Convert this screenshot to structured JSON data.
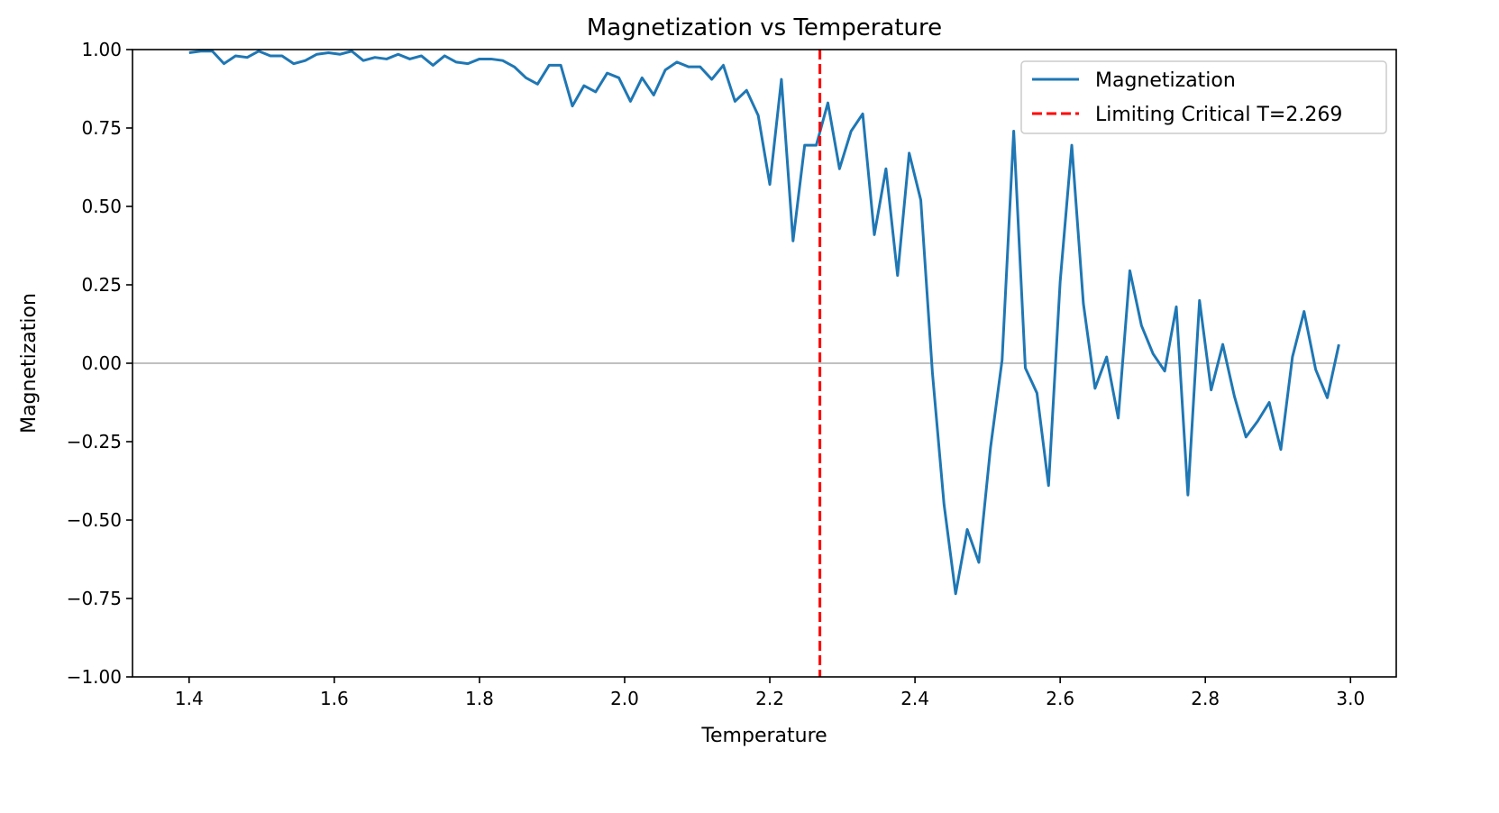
{
  "chart_data": {
    "type": "line",
    "title": "Magnetization vs Temperature",
    "xlabel": "Temperature",
    "ylabel": "Magnetization",
    "xlim": [
      1.322,
      3.063
    ],
    "ylim": [
      -1.0,
      1.0
    ],
    "xticks": [
      1.4,
      1.6,
      1.8,
      2.0,
      2.2,
      2.4,
      2.6,
      2.8,
      3.0
    ],
    "xtick_labels": [
      "1.4",
      "1.6",
      "1.8",
      "2.0",
      "2.2",
      "2.4",
      "2.6",
      "2.8",
      "3.0"
    ],
    "yticks": [
      -1.0,
      -0.75,
      -0.5,
      -0.25,
      0.0,
      0.25,
      0.5,
      0.75,
      1.0
    ],
    "ytick_labels": [
      "−1.00",
      "−0.75",
      "−0.50",
      "−0.25",
      "0.00",
      "0.25",
      "0.50",
      "0.75",
      "1.00"
    ],
    "grid": false,
    "legend_position": "top-right",
    "hline": {
      "y": 0,
      "color": "#808080"
    },
    "vline": {
      "x": 2.269,
      "label": "Limiting Critical T=2.269",
      "color": "#ff0000",
      "style": "dashed"
    },
    "series": [
      {
        "name": "Magnetization",
        "color": "#1f77b4",
        "x_start": 1.4,
        "x_step": 0.016,
        "values": [
          0.99,
          0.995,
          0.995,
          0.955,
          0.98,
          0.975,
          0.995,
          0.98,
          0.98,
          0.955,
          0.965,
          0.985,
          0.99,
          0.985,
          0.995,
          0.965,
          0.975,
          0.97,
          0.985,
          0.97,
          0.98,
          0.95,
          0.98,
          0.96,
          0.955,
          0.97,
          0.97,
          0.965,
          0.945,
          0.91,
          0.89,
          0.95,
          0.95,
          0.82,
          0.885,
          0.865,
          0.925,
          0.91,
          0.835,
          0.91,
          0.855,
          0.935,
          0.96,
          0.945,
          0.945,
          0.905,
          0.95,
          0.835,
          0.87,
          0.79,
          0.57,
          0.905,
          0.39,
          0.695,
          0.695,
          0.83,
          0.62,
          0.74,
          0.795,
          0.41,
          0.62,
          0.28,
          0.67,
          0.52,
          -0.03,
          -0.45,
          -0.735,
          -0.53,
          -0.635,
          -0.27,
          0.01,
          0.74,
          -0.015,
          -0.095,
          -0.39,
          0.26,
          0.695,
          0.19,
          -0.08,
          0.02,
          -0.175,
          0.295,
          0.12,
          0.03,
          -0.025,
          0.18,
          -0.42,
          0.2,
          -0.085,
          0.06,
          -0.105,
          -0.235,
          -0.185,
          -0.125,
          -0.275,
          0.02,
          0.165,
          -0.02,
          -0.11,
          0.06
        ]
      }
    ]
  }
}
